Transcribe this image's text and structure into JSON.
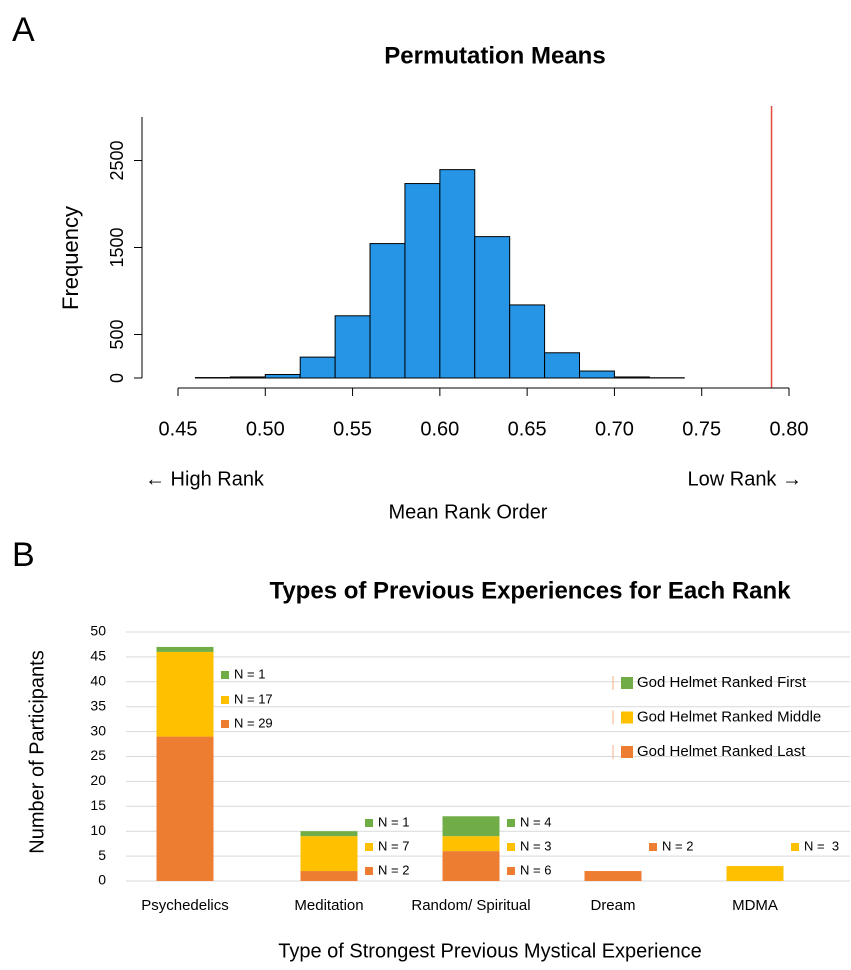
{
  "chart_data": [
    {
      "type": "histogram",
      "panel_label": "A",
      "title": "Permutation Means",
      "x_label": "Mean Rank Order",
      "y_label": "Frequency",
      "annotations": [
        "← High Rank",
        "Low Rank →"
      ],
      "bins": [
        0.46,
        0.48,
        0.5,
        0.52,
        0.54,
        0.56,
        0.58,
        0.6,
        0.62,
        0.64,
        0.66,
        0.68,
        0.7,
        0.72,
        0.74
      ],
      "values": [
        5,
        12,
        40,
        240,
        715,
        1545,
        2235,
        2395,
        1625,
        840,
        290,
        80,
        12,
        3
      ],
      "color": "#2695e6",
      "vline": 0.79,
      "vline_color": "#e8473f",
      "xlim": [
        0.45,
        0.8
      ],
      "xticks": [
        0.45,
        {
          "value": 0.5,
          "label": "0.50"
        },
        0.55,
        {
          "value": 0.6,
          "label": "0.60"
        },
        0.65,
        {
          "value": 0.7,
          "label": "0.70"
        },
        0.75,
        {
          "value": 0.8,
          "label": "0.80"
        }
      ],
      "ylim": [
        0,
        3000
      ],
      "yticks": [
        0,
        500,
        1500,
        2500
      ]
    },
    {
      "type": "stacked-bar",
      "panel_label": "B",
      "title": "Types of Previous Experiences for Each Rank",
      "x_label": "Type of Strongest Previous Mystical Experience",
      "y_label": "Number of Participants",
      "categories": [
        "Psychedelics",
        "Meditation",
        "Random/ Spiritual",
        "Dream",
        "MDMA"
      ],
      "series": [
        {
          "name": "God Helmet Ranked Last",
          "color": "#ed7d31",
          "values": [
            29,
            2,
            6,
            2,
            0
          ],
          "value_labels": [
            "N = 29",
            "N = 2",
            "N = 6",
            "N = 2",
            null
          ]
        },
        {
          "name": "God Helmet Ranked Middle",
          "color": "#ffc000",
          "values": [
            17,
            7,
            3,
            0,
            3
          ],
          "value_labels": [
            "N = 17",
            "N = 7",
            "N = 3",
            null,
            "N =  3"
          ]
        },
        {
          "name": "God Helmet Ranked First",
          "color": "#70ad47",
          "values": [
            1,
            1,
            4,
            0,
            0
          ],
          "value_labels": [
            "N = 1",
            "N = 1",
            "N = 4",
            null,
            null
          ]
        }
      ],
      "ylim": [
        0,
        50
      ],
      "yticks": [
        0,
        5,
        10,
        15,
        20,
        25,
        30,
        35,
        40,
        45,
        50
      ],
      "grid": true
    }
  ]
}
